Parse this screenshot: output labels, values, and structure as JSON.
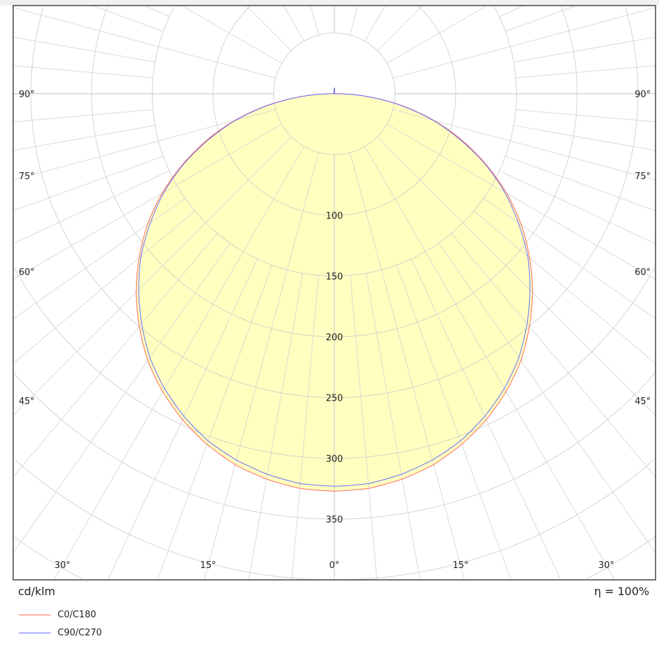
{
  "chart_data": {
    "type": "polar",
    "unit_label": "cd/klm",
    "efficiency_label": "η = 100%",
    "radial_ticks": [
      100,
      150,
      200,
      250,
      300,
      350
    ],
    "radial_tick_labels": [
      "100",
      "150",
      "200",
      "250",
      "300",
      "350"
    ],
    "angle_labels_side": [
      "90°",
      "75°",
      "60°",
      "45°"
    ],
    "angle_labels_bottom": [
      "30°",
      "15°",
      "0°",
      "15°",
      "30°"
    ],
    "grid": true,
    "fill_color": "#ffffc0",
    "gamma": [
      0,
      5,
      10,
      15,
      20,
      25,
      30,
      35,
      40,
      45,
      50,
      55,
      60,
      65,
      70,
      75,
      80,
      85,
      90,
      95,
      170,
      175,
      180
    ],
    "series": [
      {
        "name": "C0/C180",
        "color": "#ff6a5a",
        "values": [
          327,
          326,
          322,
          316,
          307,
          296,
          283,
          268,
          250,
          231,
          210,
          188,
          164,
          138,
          112,
          85,
          57,
          28,
          3,
          0,
          0,
          3,
          5
        ]
      },
      {
        "name": "C90/C270",
        "color": "#6a6aff",
        "values": [
          323,
          322,
          318,
          312,
          304,
          293,
          280,
          265,
          247,
          228,
          208,
          185,
          162,
          137,
          110,
          84,
          56,
          28,
          3,
          0,
          0,
          3,
          5
        ]
      }
    ]
  }
}
